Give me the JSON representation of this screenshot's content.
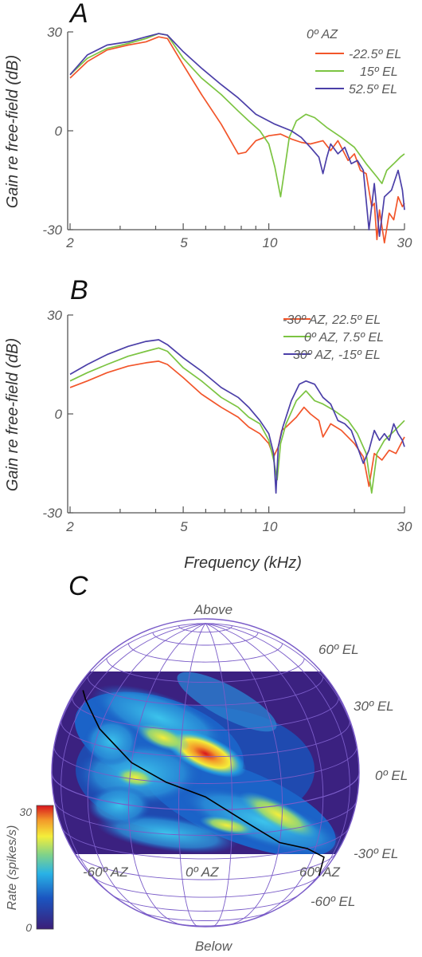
{
  "colors": {
    "red": "#f2552a",
    "green": "#7cc442",
    "purple": "#4b3fa8",
    "globe": "#7a5cc8",
    "axis": "#555555"
  },
  "chart_data": [
    {
      "panel": "A",
      "type": "line",
      "ylabel": "Gain re free-field (dB)",
      "xlabel": "",
      "xscale": "log",
      "xlim": [
        2,
        30
      ],
      "ylim": [
        -30,
        30
      ],
      "xticks": [
        "2",
        "5",
        "10",
        "30"
      ],
      "yticks": [
        "30",
        "0",
        "-30"
      ],
      "legend_title": "0º AZ",
      "legend_placement": "top-right",
      "series": [
        {
          "name": "-22.5º EL",
          "color": "red",
          "x": [
            2,
            2.3,
            2.7,
            3.2,
            3.7,
            4.1,
            4.4,
            5,
            5.8,
            6.8,
            7.8,
            8.3,
            9,
            10,
            11,
            12,
            13,
            14,
            15.5,
            16.5,
            17.5,
            19,
            20,
            21,
            22,
            23,
            23.5,
            24,
            24.5,
            25.5,
            26.5,
            27.5,
            28.5,
            29.5,
            30
          ],
          "y": [
            16,
            21,
            24.5,
            26,
            27,
            28.5,
            28,
            20,
            11,
            2,
            -7,
            -6.5,
            -3,
            -1.5,
            -1,
            -2.5,
            -3.5,
            -4,
            -3,
            -6,
            -3,
            -9,
            -7,
            -12,
            -13,
            -23,
            -22,
            -33,
            -24,
            -34,
            -25,
            -27,
            -20,
            -23,
            -22
          ]
        },
        {
          "name": "15º EL",
          "color": "green",
          "x": [
            2,
            2.3,
            2.7,
            3.2,
            3.7,
            4.1,
            4.4,
            5,
            5.8,
            6.8,
            7.8,
            8.5,
            9.3,
            10,
            10.5,
            11,
            11.4,
            11.8,
            12.5,
            13.5,
            14.5,
            16,
            18,
            20,
            22,
            24,
            25,
            26,
            27.5,
            29,
            30
          ],
          "y": [
            17,
            22,
            25,
            26.5,
            28,
            29.5,
            29,
            22,
            16,
            11,
            6,
            3,
            0,
            -4,
            -11,
            -20,
            -11,
            -2,
            3,
            5,
            4,
            1,
            -2,
            -5,
            -10,
            -14,
            -16,
            -12,
            -10,
            -8,
            -7
          ]
        },
        {
          "name": "52.5º EL",
          "color": "purple",
          "x": [
            2,
            2.3,
            2.7,
            3.2,
            3.7,
            4.1,
            4.4,
            5,
            5.8,
            6.8,
            7.8,
            9,
            10.5,
            12,
            13,
            14,
            15,
            15.5,
            16,
            16.5,
            17.5,
            18.5,
            19.5,
            20.5,
            21.5,
            22.5,
            23.5,
            24.5,
            25.5,
            27,
            28.5,
            29.5,
            30
          ],
          "y": [
            17,
            23,
            26,
            27,
            28.5,
            29.5,
            29,
            24,
            19,
            14,
            10,
            5,
            2,
            0,
            -2,
            -5,
            -8,
            -13,
            -8,
            -4,
            -7,
            -5,
            -10,
            -9,
            -12,
            -30,
            -16,
            -32,
            -20,
            -18,
            -12,
            -18,
            -24
          ]
        }
      ]
    },
    {
      "panel": "B",
      "type": "line",
      "ylabel": "Gain re free-field (dB)",
      "xlabel": "Frequency (kHz)",
      "xscale": "log",
      "xlim": [
        2,
        30
      ],
      "ylim": [
        -30,
        30
      ],
      "xticks": [
        "2",
        "5",
        "10",
        "30"
      ],
      "yticks": [
        "30",
        "0",
        "-30"
      ],
      "legend_placement": "top-right",
      "series": [
        {
          "name": "-30º AZ, 22.5º EL",
          "color": "red",
          "x": [
            2,
            2.3,
            2.7,
            3.2,
            3.7,
            4.1,
            4.4,
            5,
            5.8,
            6.8,
            7.8,
            8.5,
            9.3,
            10,
            10.4,
            10.8,
            11.1,
            11.5,
            12.5,
            13.3,
            14,
            15,
            15.5,
            16.5,
            18,
            20,
            21.5,
            22.5,
            23.5,
            25,
            26.5,
            28,
            30
          ],
          "y": [
            8,
            10,
            12.5,
            14.5,
            15.5,
            16,
            15,
            11,
            6,
            2,
            -1,
            -4,
            -6,
            -9,
            -13,
            -10,
            -5,
            -4,
            -1,
            2,
            0,
            -2,
            -7,
            -3,
            -5,
            -9,
            -13,
            -22,
            -12,
            -14,
            -11,
            -12,
            -7
          ]
        },
        {
          "name": "0º AZ, 7.5º EL",
          "color": "green",
          "x": [
            2,
            2.3,
            2.7,
            3.2,
            3.7,
            4.1,
            4.4,
            5,
            5.8,
            6.8,
            7.8,
            8.5,
            9.3,
            10,
            10.4,
            10.7,
            11,
            11.5,
            12.5,
            13.5,
            14.5,
            15.5,
            17,
            19,
            20.5,
            22,
            23,
            24,
            25.5,
            27,
            28.5,
            30
          ],
          "y": [
            10,
            12.5,
            15,
            17.5,
            19,
            20,
            19,
            14,
            10,
            5,
            2,
            -1,
            -3,
            -8,
            -14,
            -20,
            -9,
            -3,
            4,
            7,
            4,
            3,
            1,
            -2,
            -6,
            -12,
            -24,
            -12,
            -8,
            -6,
            -4,
            -2
          ]
        },
        {
          "name": "30º AZ, -15º EL",
          "color": "purple",
          "x": [
            2,
            2.3,
            2.7,
            3.2,
            3.7,
            4.1,
            4.4,
            5,
            5.8,
            6.8,
            7.8,
            8.5,
            9.3,
            10,
            10.4,
            10.6,
            10.8,
            11.2,
            12,
            12.8,
            13.5,
            14.5,
            15.5,
            16.5,
            17.5,
            18.5,
            19.5,
            20.5,
            21.5,
            22.5,
            23.5,
            24.5,
            25.5,
            26.5,
            27.5,
            28.5,
            29.5,
            30
          ],
          "y": [
            12,
            15,
            18,
            20.5,
            22,
            22.5,
            21,
            17,
            13,
            8,
            5,
            2,
            -2,
            -6,
            -12,
            -24,
            -10,
            -4,
            4,
            9,
            10,
            9,
            5,
            3,
            -2,
            -3,
            -5,
            -10,
            -15,
            -11,
            -5,
            -8,
            -6,
            -8,
            -3,
            -6,
            -8,
            -10
          ]
        }
      ]
    },
    {
      "panel": "C",
      "type": "heatmap",
      "projection": "globe (orthographic)",
      "colorbar_label": "Rate (spikes/s)",
      "colorbar_ticks": [
        "30",
        "0"
      ],
      "colorbar_range": [
        0,
        30
      ],
      "top_label": "Above",
      "bottom_label": "Below",
      "el_labels": [
        "60º EL",
        "30º EL",
        "0º EL",
        "-30º EL",
        "-60º EL"
      ],
      "az_labels": [
        "-60º AZ",
        "0º AZ",
        "60º AZ"
      ],
      "peak_rate_spikes_per_s": 30,
      "trace": {
        "description": "black line through peak responses",
        "az_deg": [
          -80,
          -70,
          -50,
          -30,
          -15,
          0,
          15,
          30,
          45,
          60,
          72
        ],
        "el_deg": [
          36,
          34,
          26,
          16,
          10,
          5,
          -5,
          -15,
          -20,
          -27,
          -39
        ]
      },
      "hotspots": [
        {
          "az": -12,
          "el": 8,
          "rate": 30
        },
        {
          "az": -25,
          "el": 18,
          "rate": 22
        },
        {
          "az": 40,
          "el": -20,
          "rate": 24
        },
        {
          "az": 25,
          "el": -30,
          "rate": 20
        },
        {
          "az": -40,
          "el": -10,
          "rate": 14
        }
      ]
    }
  ]
}
